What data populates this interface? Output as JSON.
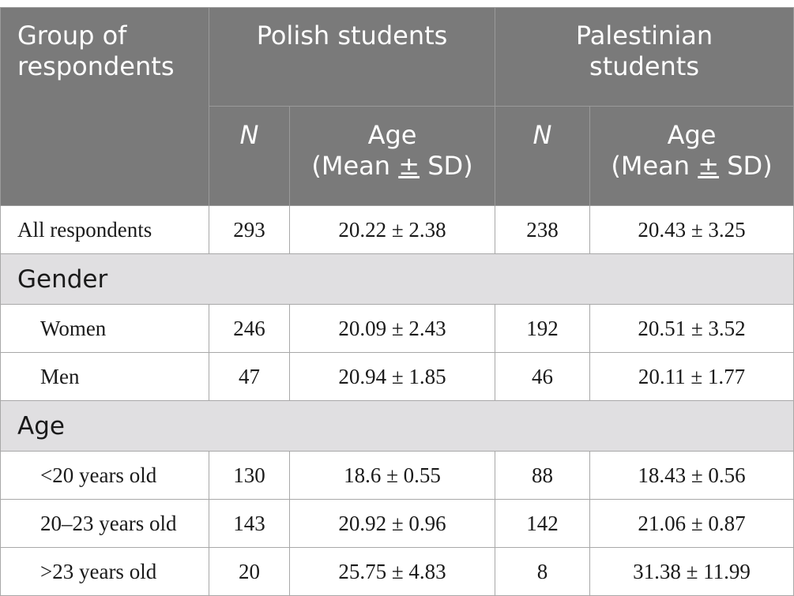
{
  "header": {
    "group_label": "Group of respondents",
    "group_label_line1": "Group of",
    "group_label_line2": "respondents",
    "polish": "Polish students",
    "palestinian_line1": "Palestinian",
    "palestinian_line2": "students",
    "n_label": "N",
    "age_line1": "Age",
    "age_line2_pre": "(Mean ",
    "age_line2_pm": "±",
    "age_line2_post": " SD)"
  },
  "rows": [
    {
      "label": "All respondents",
      "pol_n": "293",
      "pol_age": "20.22 ± 2.38",
      "pal_n": "238",
      "pal_age": "20.43 ± 3.25"
    }
  ],
  "sections": [
    {
      "title": "Gender",
      "rows": [
        {
          "label": "Women",
          "pol_n": "246",
          "pol_age": "20.09 ± 2.43",
          "pal_n": "192",
          "pal_age": "20.51 ± 3.52"
        },
        {
          "label": "Men",
          "pol_n": "47",
          "pol_age": "20.94 ± 1.85",
          "pal_n": "46",
          "pal_age": "20.11 ± 1.77"
        }
      ]
    },
    {
      "title": "Age",
      "rows": [
        {
          "label": "<20 years old",
          "pol_n": "130",
          "pol_age": "18.6 ± 0.55",
          "pal_n": "88",
          "pal_age": "18.43 ± 0.56"
        },
        {
          "label": "20–23 years old",
          "pol_n": "143",
          "pol_age": "20.92 ± 0.96",
          "pal_n": "142",
          "pal_age": "21.06 ± 0.87"
        },
        {
          "label": ">23 years old",
          "pol_n": "20",
          "pol_age": "25.75 ± 4.83",
          "pal_n": "8",
          "pal_age": "31.38 ± 11.99"
        }
      ]
    }
  ],
  "colors": {
    "header_bg": "#7a7a7a",
    "section_bg": "#e0dfe1",
    "border": "#a8a8a8"
  }
}
